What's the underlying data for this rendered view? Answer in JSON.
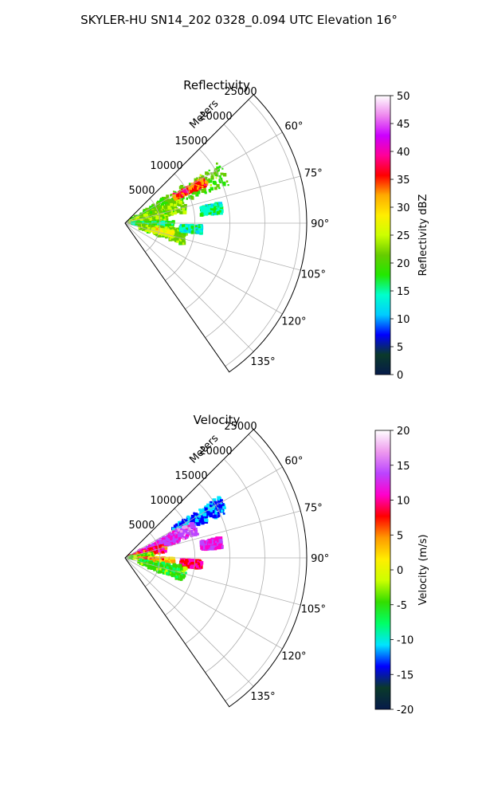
{
  "figure": {
    "title": "SKYLER-HU  SN14_202  0328_0.094 UTC Elevation 16°"
  },
  "colors": {
    "grid": "#b0b0b0",
    "frame": "#000000"
  },
  "chart_data": [
    {
      "type": "heatmap",
      "title": "Reflectivity",
      "projection": "polar-sector",
      "azimuth_range_deg": [
        45,
        145
      ],
      "range_max_m": 26000,
      "range_ticks": [
        "5000",
        "10000",
        "15000",
        "20000",
        "25000"
      ],
      "range_tick_values": [
        5000,
        10000,
        15000,
        20000,
        25000
      ],
      "range_label": "Meters",
      "azimuth_ticks": [
        "60°",
        "75°",
        "90°",
        "105°",
        "120°",
        "135°"
      ],
      "azimuth_tick_values": [
        60,
        75,
        90,
        105,
        120,
        135
      ],
      "grid": true,
      "colorbar": {
        "label": "Reflectivity dBZ",
        "min": 0,
        "max": 50,
        "ticks": [
          "0",
          "5",
          "10",
          "15",
          "20",
          "25",
          "30",
          "35",
          "40",
          "45",
          "50"
        ],
        "stops": [
          "#061b4a",
          "#0a3a2a",
          "#0000ff",
          "#00ccff",
          "#00ffcc",
          "#22e800",
          "#66cc00",
          "#ccff00",
          "#ffee00",
          "#ffaa00",
          "#ff0000",
          "#ff0099",
          "#cc00ff",
          "#ee88ee",
          "#ffffff"
        ]
      },
      "echo_regions": [
        {
          "az": [
            57,
            70
          ],
          "r": [
            1000,
            16000
          ],
          "value": 20
        },
        {
          "az": [
            60,
            65
          ],
          "r": [
            8000,
            13000
          ],
          "value": 35
        },
        {
          "az": [
            67,
            80
          ],
          "r": [
            500,
            9000
          ],
          "value": 22
        },
        {
          "az": [
            80,
            88
          ],
          "r": [
            1000,
            6000
          ],
          "value": 23
        },
        {
          "az": [
            78,
            84
          ],
          "r": [
            11000,
            14000
          ],
          "value": 15
        },
        {
          "az": [
            88,
            94
          ],
          "r": [
            1000,
            7000
          ],
          "value": 16
        },
        {
          "az": [
            96,
            110
          ],
          "r": [
            2000,
            9000
          ],
          "value": 22
        },
        {
          "az": [
            100,
            106
          ],
          "r": [
            4000,
            7000
          ],
          "value": 27
        },
        {
          "az": [
            92,
            98
          ],
          "r": [
            8000,
            11000
          ],
          "value": 14
        }
      ]
    },
    {
      "type": "heatmap",
      "title": "Velocity",
      "projection": "polar-sector",
      "azimuth_range_deg": [
        45,
        145
      ],
      "range_max_m": 26000,
      "range_ticks": [
        "5000",
        "10000",
        "15000",
        "20000",
        "25000"
      ],
      "range_tick_values": [
        5000,
        10000,
        15000,
        20000,
        25000
      ],
      "range_label": "Meters",
      "azimuth_ticks": [
        "60°",
        "75°",
        "90°",
        "105°",
        "120°",
        "135°"
      ],
      "azimuth_tick_values": [
        60,
        75,
        90,
        105,
        120,
        135
      ],
      "grid": true,
      "colorbar": {
        "label": "Velocity (m/s)",
        "min": -20,
        "max": 20,
        "ticks": [
          "-20",
          "-15",
          "-10",
          "-5",
          "0",
          "5",
          "10",
          "15",
          "20"
        ],
        "stops": [
          "#061b4a",
          "#0a3a2a",
          "#0000ff",
          "#00e5ff",
          "#00ff66",
          "#33dd00",
          "#ccff00",
          "#ffee00",
          "#ff9900",
          "#ff0000",
          "#ff00cc",
          "#bb44ff",
          "#ee99ee",
          "#ffffff"
        ]
      },
      "echo_regions": [
        {
          "az": [
            57,
            66
          ],
          "r": [
            8000,
            16000
          ],
          "value": -12
        },
        {
          "az": [
            62,
            72
          ],
          "r": [
            5000,
            11000
          ],
          "value": 14
        },
        {
          "az": [
            64,
            74
          ],
          "r": [
            2000,
            8000
          ],
          "value": 12
        },
        {
          "az": [
            70,
            82
          ],
          "r": [
            500,
            6000
          ],
          "value": 8
        },
        {
          "az": [
            80,
            90
          ],
          "r": [
            500,
            4000
          ],
          "value": -3
        },
        {
          "az": [
            78,
            84
          ],
          "r": [
            11000,
            14000
          ],
          "value": 12
        },
        {
          "az": [
            90,
            96
          ],
          "r": [
            2000,
            7000
          ],
          "value": 4
        },
        {
          "az": [
            92,
            98
          ],
          "r": [
            8000,
            11000
          ],
          "value": 9
        },
        {
          "az": [
            98,
            112
          ],
          "r": [
            2000,
            9000
          ],
          "value": -5
        }
      ]
    }
  ]
}
